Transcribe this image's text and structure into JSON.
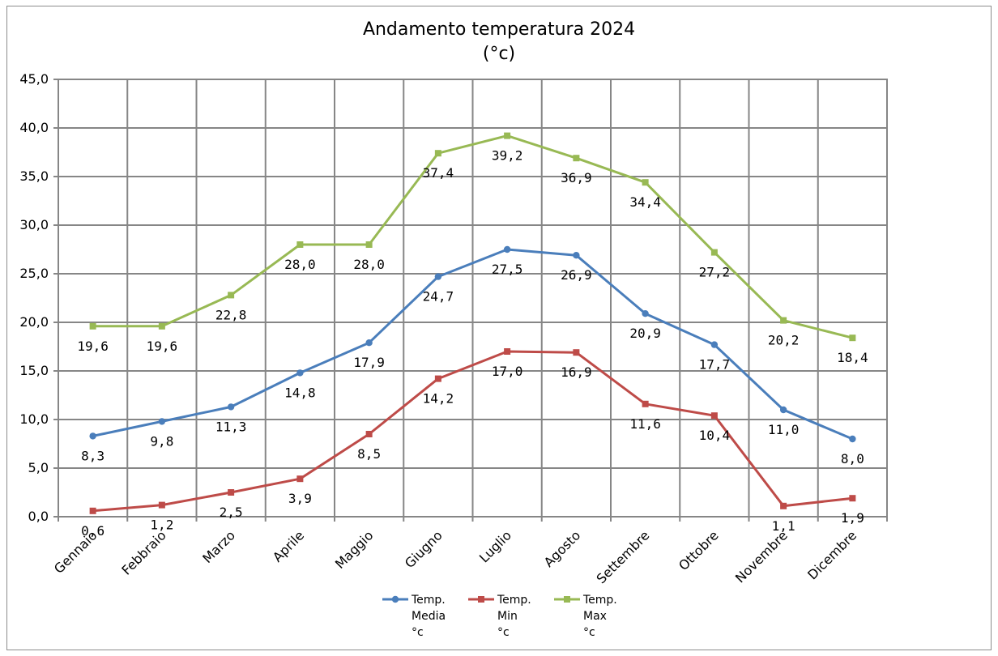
{
  "chart_data": {
    "type": "line",
    "title_lines": [
      "Andamento temperatura 2024",
      "(°c)"
    ],
    "categories": [
      "Gennaio",
      "Febbraio",
      "Marzo",
      "Aprile",
      "Maggio",
      "Giugno",
      "Luglio",
      "Agosto",
      "Settembre",
      "Ottobre",
      "Novembre",
      "Dicembre"
    ],
    "ylim": [
      0,
      45
    ],
    "yticks": [
      0,
      5,
      10,
      15,
      20,
      25,
      30,
      35,
      40,
      45
    ],
    "ytick_labels": [
      "0,0",
      "5,0",
      "10,0",
      "15,0",
      "20,0",
      "25,0",
      "30,0",
      "35,0",
      "40,0",
      "45,0"
    ],
    "grid": true,
    "legend_position": "bottom",
    "series": [
      {
        "key": "media",
        "name_lines": [
          "Temp.",
          "Media",
          "°c"
        ],
        "color": "#4a7ebb",
        "marker": "circle",
        "values": [
          8.3,
          9.8,
          11.3,
          14.8,
          17.9,
          24.7,
          27.5,
          26.9,
          20.9,
          17.7,
          11.0,
          8.0
        ],
        "labels": [
          "8,3",
          "9,8",
          "11,3",
          "14,8",
          "17,9",
          "24,7",
          "27,5",
          "26,9",
          "20,9",
          "17,7",
          "11,0",
          "8,0"
        ]
      },
      {
        "key": "min",
        "name_lines": [
          "Temp.",
          "Min",
          "°c"
        ],
        "color": "#be4b48",
        "marker": "square",
        "values": [
          0.6,
          1.2,
          2.5,
          3.9,
          8.5,
          14.2,
          17.0,
          16.9,
          11.6,
          10.4,
          1.1,
          1.9
        ],
        "labels": [
          "0,6",
          "1,2",
          "2,5",
          "3,9",
          "8,5",
          "14,2",
          "17,0",
          "16,9",
          "11,6",
          "10,4",
          "1,1",
          "1,9"
        ]
      },
      {
        "key": "max",
        "name_lines": [
          "Temp.",
          "Max",
          "°c"
        ],
        "color": "#98b954",
        "marker": "square",
        "values": [
          19.6,
          19.6,
          22.8,
          28.0,
          28.0,
          37.4,
          39.2,
          36.9,
          34.4,
          27.2,
          20.2,
          18.4
        ],
        "labels": [
          "19,6",
          "19,6",
          "22,8",
          "28,0",
          "28,0",
          "37,4",
          "39,2",
          "36,9",
          "34,4",
          "27,2",
          "20,2",
          "18,4"
        ]
      }
    ]
  }
}
